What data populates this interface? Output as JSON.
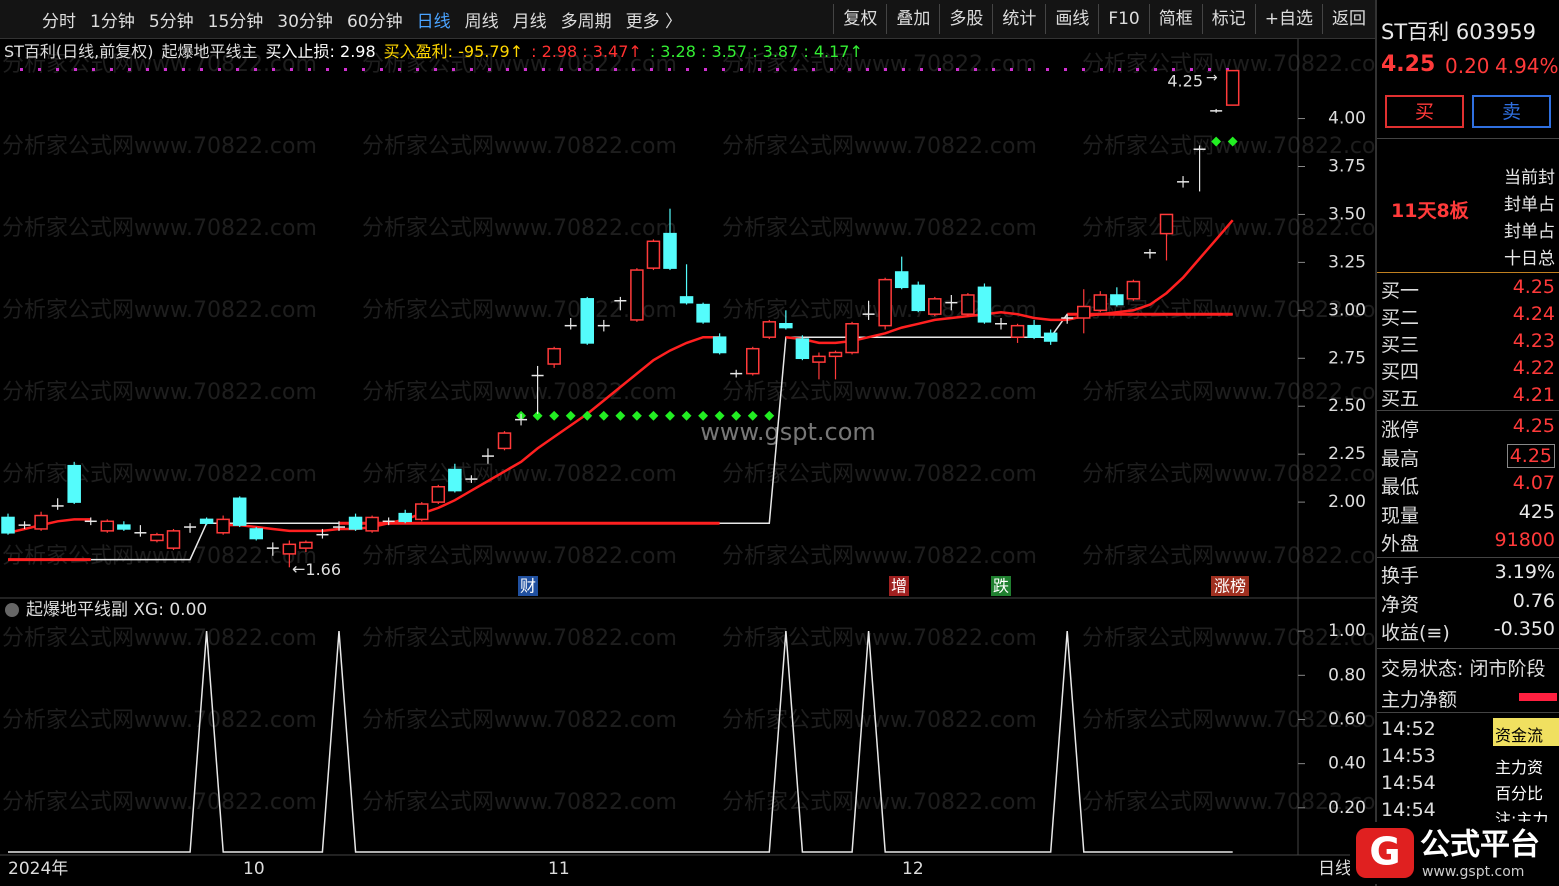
{
  "toolbar": {
    "left": [
      "分时",
      "1分钟",
      "5分钟",
      "15分钟",
      "30分钟",
      "60分钟",
      "日线",
      "周线",
      "月线",
      "多周期",
      "更多 〉"
    ],
    "right": [
      "复权",
      "叠加",
      "多股",
      "统计",
      "画线",
      "F10",
      "简框",
      "标记",
      "+自选",
      "返回"
    ]
  },
  "header": {
    "title": "ST百利(日线,前复权)",
    "indicator": "起爆地平线主",
    "stop_loss": "买入止损: 2.98",
    "profit": "买入盈利: -95.79↑",
    "targets_red": ": 2.98 : 3.47↑",
    "targets_green": ": 3.28 : 3.57 : 3.87 : 4.17↑"
  },
  "chart_data": [
    {
      "type": "candlestick",
      "ylim": [
        1.5,
        4.42
      ],
      "yticks": [
        {
          "value": 4,
          "label": "4.00"
        },
        3.75,
        {
          "value": 3.5,
          "label": "3.50"
        },
        3.25,
        {
          "value": 3,
          "label": "3.00"
        },
        2.75,
        {
          "value": 2.5,
          "label": "2.50"
        },
        2.25,
        {
          "value": 2,
          "label": "2.00"
        }
      ],
      "x_labels": [
        "2024年",
        "10",
        "11",
        "12"
      ],
      "period_label": "日线",
      "markers": [
        "财",
        "增",
        "跌",
        "涨榜"
      ],
      "candles": {
        "up_color": "#ff3a3a",
        "down_color": "#54fcfc",
        "open": [
          1.92,
          1.88,
          1.86,
          1.98,
          2.19,
          1.9,
          1.85,
          1.88,
          1.84,
          1.8,
          1.76,
          1.87,
          1.91,
          1.84,
          2.02,
          1.86,
          1.76,
          1.73,
          1.76,
          1.83,
          1.87,
          1.92,
          1.85,
          1.9,
          1.94,
          1.91,
          2.0,
          2.17,
          2.12,
          2.24,
          2.28,
          2.43,
          2.66,
          2.72,
          2.92,
          3.06,
          2.92,
          3.05,
          2.95,
          3.22,
          3.4,
          3.07,
          3.03,
          2.86,
          2.67,
          2.67,
          2.86,
          2.93,
          2.85,
          2.73,
          2.76,
          2.78,
          2.98,
          2.92,
          3.2,
          3.13,
          2.98,
          3.04,
          2.98,
          3.12,
          2.93,
          2.86,
          2.92,
          2.88,
          2.96,
          2.96,
          3.0,
          3.08,
          3.06,
          3.3,
          3.4,
          3.67,
          3.84,
          4.04,
          4.07
        ],
        "high": [
          1.94,
          1.9,
          1.95,
          2.02,
          2.21,
          1.92,
          1.91,
          1.9,
          1.88,
          1.84,
          1.86,
          1.89,
          1.92,
          1.93,
          2.03,
          1.87,
          1.79,
          1.8,
          1.8,
          1.86,
          1.9,
          1.94,
          1.93,
          1.92,
          1.96,
          2.0,
          2.09,
          2.2,
          2.14,
          2.28,
          2.37,
          2.46,
          2.71,
          2.81,
          2.96,
          3.07,
          2.95,
          3.07,
          3.22,
          3.37,
          3.53,
          3.24,
          3.04,
          2.88,
          2.69,
          2.81,
          2.95,
          3.0,
          2.87,
          2.78,
          2.79,
          2.94,
          3.05,
          3.17,
          3.28,
          3.15,
          3.07,
          3.08,
          3.09,
          3.14,
          2.96,
          2.93,
          2.95,
          2.9,
          2.98,
          3.11,
          3.1,
          3.12,
          3.16,
          3.32,
          3.5,
          3.7,
          3.86,
          4.05,
          4.25
        ],
        "low": [
          1.83,
          1.86,
          1.85,
          1.96,
          1.99,
          1.88,
          1.84,
          1.85,
          1.82,
          1.79,
          1.75,
          1.84,
          1.88,
          1.83,
          1.87,
          1.8,
          1.72,
          1.66,
          1.74,
          1.81,
          1.85,
          1.85,
          1.84,
          1.88,
          1.89,
          1.9,
          1.99,
          2.05,
          2.1,
          2.2,
          2.27,
          2.4,
          2.46,
          2.7,
          2.9,
          2.82,
          2.89,
          3.0,
          2.94,
          3.21,
          3.21,
          3.03,
          2.93,
          2.77,
          2.65,
          2.66,
          2.85,
          2.9,
          2.74,
          2.64,
          2.64,
          2.77,
          2.95,
          2.9,
          3.11,
          2.99,
          2.97,
          3.0,
          2.97,
          2.93,
          2.9,
          2.83,
          2.85,
          2.82,
          2.93,
          2.88,
          2.99,
          3.02,
          3.05,
          3.27,
          3.26,
          3.64,
          3.62,
          4.03,
          4.07
        ],
        "close": [
          1.84,
          1.88,
          1.93,
          1.98,
          2.0,
          1.9,
          1.9,
          1.86,
          1.84,
          1.83,
          1.85,
          1.87,
          1.89,
          1.91,
          1.88,
          1.81,
          1.76,
          1.78,
          1.79,
          1.83,
          1.87,
          1.86,
          1.92,
          1.9,
          1.9,
          1.99,
          2.08,
          2.06,
          2.12,
          2.24,
          2.36,
          2.43,
          2.66,
          2.8,
          2.92,
          2.83,
          2.92,
          3.05,
          3.21,
          3.36,
          3.22,
          3.04,
          2.94,
          2.78,
          2.67,
          2.8,
          2.94,
          2.91,
          2.75,
          2.76,
          2.78,
          2.93,
          2.98,
          3.16,
          3.12,
          3.0,
          3.06,
          3.04,
          3.08,
          2.94,
          2.93,
          2.92,
          2.86,
          2.84,
          2.96,
          3.02,
          3.08,
          3.03,
          3.15,
          3.3,
          3.5,
          3.67,
          3.84,
          4.04,
          4.25
        ]
      },
      "series": [
        {
          "kind": "line",
          "color": "#e8e8e8",
          "width": 1.5,
          "values": [
            null,
            null,
            null,
            null,
            null,
            1.7,
            1.7,
            1.7,
            1.7,
            1.7,
            1.7,
            1.7,
            1.89,
            1.89,
            1.89,
            1.89,
            1.89,
            1.89,
            1.89,
            1.89,
            1.89,
            1.89,
            1.89,
            1.89,
            1.89,
            1.89,
            1.89,
            1.89,
            1.89,
            1.89,
            1.89,
            1.89,
            1.89,
            1.89,
            1.89,
            1.89,
            1.89,
            1.89,
            1.89,
            1.89,
            1.89,
            1.89,
            1.89,
            1.89,
            1.89,
            1.89,
            1.89,
            2.86,
            2.86,
            2.86,
            2.86,
            2.86,
            2.86,
            2.86,
            2.86,
            2.86,
            2.86,
            2.86,
            2.86,
            2.86,
            2.86,
            2.86,
            2.86,
            2.86,
            2.98,
            2.98,
            2.98,
            2.98,
            2.98,
            2.98,
            2.98,
            2.98,
            2.98,
            2.98,
            2.98
          ]
        },
        {
          "kind": "line",
          "color": "#ff2020",
          "width": 3,
          "values": [
            1.7,
            1.7,
            1.7,
            1.7,
            1.7,
            1.7,
            null,
            null,
            null,
            null,
            null,
            null,
            null,
            null,
            null,
            null,
            null,
            null,
            null,
            null,
            1.89,
            1.89,
            1.89,
            1.89,
            1.89,
            1.89,
            1.89,
            1.89,
            1.89,
            1.89,
            1.89,
            1.89,
            1.89,
            1.89,
            1.89,
            1.89,
            1.89,
            1.89,
            1.89,
            1.89,
            1.89,
            1.89,
            1.89,
            1.89,
            null,
            null,
            null,
            null,
            null,
            null,
            null,
            null,
            null,
            null,
            null,
            null,
            null,
            null,
            null,
            null,
            null,
            null,
            null,
            null,
            2.98,
            2.98,
            2.98,
            2.98,
            2.98,
            2.98,
            2.98,
            2.98,
            2.98,
            2.98,
            2.98
          ]
        },
        {
          "kind": "line",
          "color": "#ff2020",
          "width": 2.5,
          "values": [
            1.84,
            1.86,
            1.88,
            1.9,
            1.91,
            1.91,
            null,
            null,
            null,
            null,
            null,
            null,
            null,
            1.88,
            1.88,
            1.87,
            1.86,
            1.85,
            1.85,
            1.85,
            1.86,
            1.86,
            1.87,
            1.89,
            1.91,
            1.94,
            1.97,
            2.01,
            2.06,
            2.11,
            2.16,
            2.21,
            2.28,
            2.34,
            2.4,
            2.46,
            2.53,
            2.6,
            2.67,
            2.74,
            2.79,
            2.83,
            2.86,
            2.86,
            null,
            null,
            null,
            2.86,
            2.85,
            2.83,
            2.83,
            2.84,
            2.86,
            2.88,
            2.91,
            2.93,
            2.95,
            2.96,
            2.97,
            2.98,
            2.99,
            2.98,
            2.96,
            2.95,
            2.95,
            2.97,
            2.98,
            2.99,
            3.0,
            3.03,
            3.09,
            3.17,
            3.27,
            3.37,
            3.47
          ]
        },
        {
          "kind": "diamond",
          "color": "#22ee22",
          "values": [
            null,
            null,
            null,
            null,
            null,
            null,
            null,
            null,
            null,
            null,
            null,
            null,
            null,
            null,
            null,
            null,
            null,
            null,
            null,
            null,
            null,
            null,
            null,
            null,
            null,
            null,
            null,
            null,
            null,
            null,
            null,
            2.45,
            2.45,
            2.45,
            2.45,
            2.45,
            2.45,
            2.45,
            2.45,
            2.45,
            2.45,
            2.45,
            2.45,
            2.45,
            2.45,
            2.45,
            2.45,
            null,
            null,
            null,
            null,
            null,
            null,
            null,
            null,
            null,
            null,
            null,
            null,
            null,
            null,
            null,
            null,
            null,
            null,
            null,
            null,
            null,
            null,
            null,
            null,
            null,
            null,
            3.88,
            3.88
          ]
        }
      ]
    },
    {
      "type": "line",
      "title": "起爆地平线副 XG: 0.00",
      "ylim": [
        0,
        1.15
      ],
      "color": "#e8e8e8",
      "yticks": [
        {
          "value": 1,
          "label": "1.00"
        },
        {
          "value": 0.8,
          "label": "0.80"
        },
        {
          "value": 0.6,
          "label": "0.60"
        },
        {
          "value": 0.4,
          "label": "0.40"
        },
        {
          "value": 0.2,
          "label": "0.20"
        }
      ],
      "values": [
        0,
        0,
        0,
        0,
        0,
        0,
        0,
        0,
        0,
        0,
        0,
        0,
        1,
        0,
        0,
        0,
        0,
        0,
        0,
        0,
        1,
        0,
        0,
        0,
        0,
        0,
        0,
        0,
        0,
        0,
        0,
        0,
        0,
        0,
        0,
        0,
        0,
        0,
        0,
        0,
        0,
        0,
        0,
        0,
        0,
        0,
        0,
        1,
        0,
        0,
        0,
        0,
        1,
        0,
        0,
        0,
        0,
        0,
        0,
        0,
        0,
        0,
        0,
        0,
        1,
        0,
        0,
        0,
        0,
        0,
        0,
        0,
        0,
        0,
        0
      ]
    }
  ],
  "watermarks": {
    "site": "分析家公式网www.70822.com",
    "center": "www.gspt.com",
    "logo": "公式平台",
    "logo_url": "www.gspt.com"
  },
  "quote": {
    "name": "ST百利 603959",
    "price": "4.25",
    "change": "0.20",
    "pct": "4.94%",
    "buy": "买",
    "sell": "卖",
    "streak": "11天8板",
    "notes": [
      "当前封",
      "封单占",
      "封单占",
      "十日总"
    ],
    "book": [
      [
        "买一",
        "4.25"
      ],
      [
        "买二",
        "4.24"
      ],
      [
        "买三",
        "4.23"
      ],
      [
        "买四",
        "4.22"
      ],
      [
        "买五",
        "4.21"
      ]
    ],
    "stats": [
      [
        "涨停",
        "4.25"
      ],
      [
        "最高",
        "4.25"
      ],
      [
        "最低",
        "4.07"
      ],
      [
        "现量",
        "425"
      ],
      [
        "外盘",
        "91800"
      ]
    ],
    "stats2": [
      [
        "换手",
        "3.19%"
      ],
      [
        "净资",
        "0.76"
      ],
      [
        "收益(≡)",
        "-0.350"
      ]
    ],
    "status": "交易状态: 闭市阶段",
    "flow": "主力净额",
    "times": [
      "14:52",
      "14:53",
      "14:54",
      "14:54"
    ],
    "flow_box": [
      "资金流",
      "主力资",
      "百分比",
      "注:主力"
    ]
  }
}
